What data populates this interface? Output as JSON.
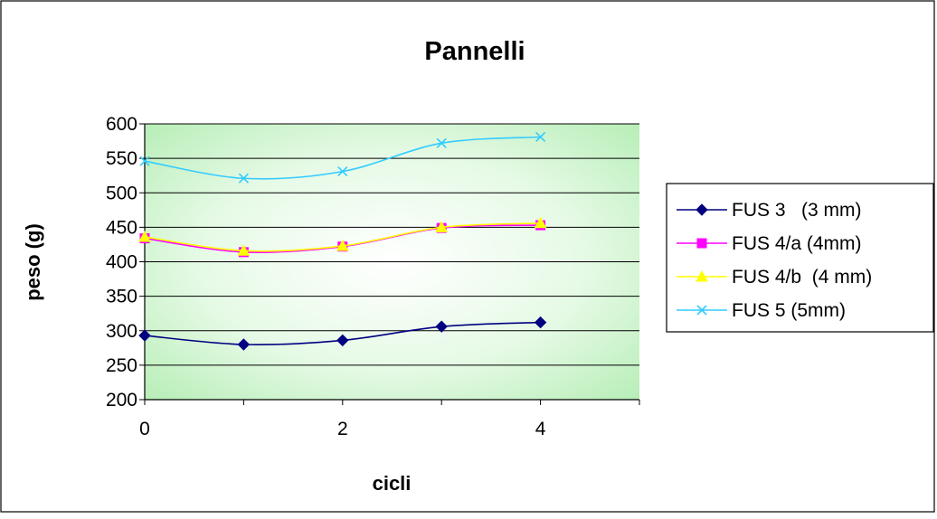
{
  "chart_data": {
    "type": "line",
    "title": "Pannelli",
    "xlabel": "cicli",
    "ylabel": "peso (g)",
    "xlim": [
      0,
      5
    ],
    "ylim": [
      200,
      600
    ],
    "x_ticks": [
      "0",
      "2",
      "4"
    ],
    "y_ticks": [
      "200",
      "250",
      "300",
      "350",
      "400",
      "450",
      "500",
      "550",
      "600"
    ],
    "grid": "horizontal",
    "smooth": true,
    "plot_background": "radial gradient white center to #c0f0c0 edge",
    "legend_position": "right",
    "series": [
      {
        "name": "FUS 3   (3 mm)",
        "marker": "diamond",
        "color": "#000080",
        "x": [
          0,
          1,
          2,
          3,
          4
        ],
        "y": [
          293,
          280,
          286,
          306,
          312
        ]
      },
      {
        "name": "FUS 4/a (4mm)",
        "marker": "square",
        "color": "#ff00ff",
        "x": [
          0,
          1,
          2,
          3,
          4
        ],
        "y": [
          434,
          414,
          422,
          449,
          453
        ]
      },
      {
        "name": "FUS 4/b  (4 mm)",
        "marker": "triangle",
        "color": "#ffff00",
        "x": [
          0,
          1,
          2,
          3,
          4
        ],
        "y": [
          436,
          416,
          423,
          450,
          456
        ]
      },
      {
        "name": "FUS 5 (5mm)",
        "marker": "x",
        "color": "#33ccff",
        "x": [
          0,
          1,
          2,
          3,
          4
        ],
        "y": [
          546,
          521,
          531,
          572,
          581
        ]
      }
    ]
  }
}
